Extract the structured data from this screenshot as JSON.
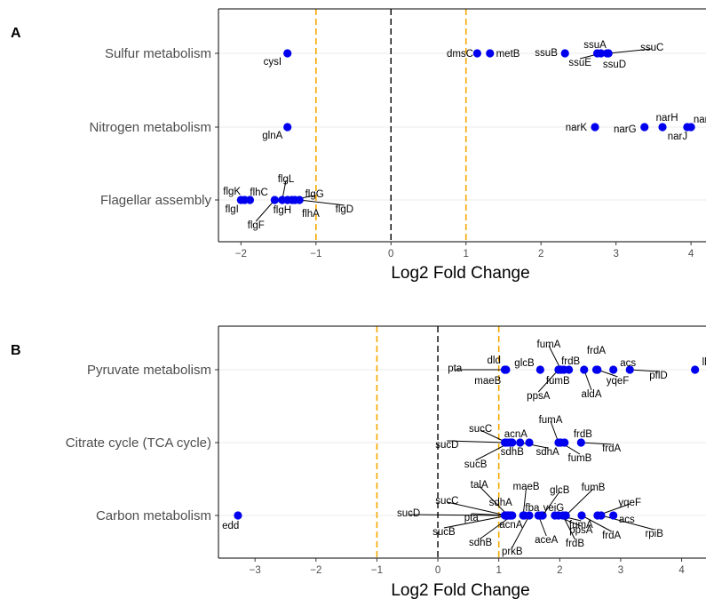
{
  "chart_data": [
    {
      "type": "scatter",
      "panel": "A",
      "xlabel": "Log2 Fold Change",
      "xlim": [
        -2.3,
        4.2
      ],
      "xticks": [
        -2,
        -1,
        0,
        1,
        2,
        3,
        4
      ],
      "xtick_labels": [
        "−2",
        "−1",
        "0",
        "1",
        "2",
        "3",
        "4"
      ],
      "reference_lines": {
        "zero": 0,
        "thresholds": [
          -1,
          1
        ]
      },
      "categories": [
        "Sulfur metabolism",
        "Nitrogen metabolism",
        "Flagellar assembly"
      ],
      "grid": "horizontal",
      "point_color": "#0000ee",
      "points": [
        {
          "category": "Sulfur metabolism",
          "gene": "cysI",
          "x": -1.38,
          "lx": -1.58,
          "ly": 9
        },
        {
          "category": "Sulfur metabolism",
          "gene": "dmsC",
          "x": 1.15,
          "lx": 0.92,
          "ly": 0
        },
        {
          "category": "Sulfur metabolism",
          "gene": "metB",
          "x": 1.32,
          "lx": 1.56,
          "ly": 0
        },
        {
          "category": "Sulfur metabolism",
          "gene": "ssuB",
          "x": 2.32,
          "lx": 2.07,
          "ly": -1
        },
        {
          "category": "Sulfur metabolism",
          "gene": "ssuA",
          "x": 2.75,
          "lx": 2.72,
          "ly": -10
        },
        {
          "category": "Sulfur metabolism",
          "gene": "ssuE",
          "x": 2.8,
          "lx": 2.52,
          "ly": 10
        },
        {
          "category": "Sulfur metabolism",
          "gene": "ssuD",
          "x": 2.88,
          "lx": 2.98,
          "ly": 12
        },
        {
          "category": "Sulfur metabolism",
          "gene": "ssuC",
          "x": 2.9,
          "lx": 3.48,
          "ly": -7
        },
        {
          "category": "Nitrogen metabolism",
          "gene": "glnA",
          "x": -1.38,
          "lx": -1.58,
          "ly": 9
        },
        {
          "category": "Nitrogen metabolism",
          "gene": "narK",
          "x": 2.72,
          "lx": 2.47,
          "ly": 0
        },
        {
          "category": "Nitrogen metabolism",
          "gene": "narG",
          "x": 3.38,
          "lx": 3.12,
          "ly": 2
        },
        {
          "category": "Nitrogen metabolism",
          "gene": "narH",
          "x": 3.62,
          "lx": 3.68,
          "ly": -11
        },
        {
          "category": "Nitrogen metabolism",
          "gene": "narJ",
          "x": 3.95,
          "lx": 3.82,
          "ly": 10
        },
        {
          "category": "Nitrogen metabolism",
          "gene": "narI",
          "x": 4.0,
          "lx": 4.15,
          "ly": -9
        },
        {
          "category": "Flagellar assembly",
          "gene": "flgK",
          "x": -2.0,
          "lx": -2.12,
          "ly": -10
        },
        {
          "category": "Flagellar assembly",
          "gene": "flgI",
          "x": -1.95,
          "lx": -2.12,
          "ly": 10
        },
        {
          "category": "Flagellar assembly",
          "gene": "flhC",
          "x": -1.88,
          "lx": -1.76,
          "ly": -9
        },
        {
          "category": "Flagellar assembly",
          "gene": "flgF",
          "x": -1.55,
          "lx": -1.8,
          "ly": 28
        },
        {
          "category": "Flagellar assembly",
          "gene": "flgL",
          "x": -1.45,
          "lx": -1.4,
          "ly": -24
        },
        {
          "category": "Flagellar assembly",
          "gene": "flgH",
          "x": -1.38,
          "lx": -1.45,
          "ly": 11
        },
        {
          "category": "Flagellar assembly",
          "gene": "flgG",
          "x": -1.32,
          "lx": -1.02,
          "ly": -7
        },
        {
          "category": "Flagellar assembly",
          "gene": "flhA",
          "x": -1.28,
          "lx": -1.07,
          "ly": 15
        },
        {
          "category": "Flagellar assembly",
          "gene": "flgD",
          "x": -1.22,
          "lx": -0.62,
          "ly": 10
        }
      ]
    },
    {
      "type": "scatter",
      "panel": "B",
      "xlabel": "Log2 Fold Change",
      "xlim": [
        -3.6,
        4.4
      ],
      "xticks": [
        -3,
        -2,
        -1,
        0,
        1,
        2,
        3,
        4
      ],
      "xtick_labels": [
        "−3",
        "−2",
        "−1",
        "0",
        "1",
        "2",
        "3",
        "4"
      ],
      "reference_lines": {
        "zero": 0,
        "thresholds": [
          -1,
          1
        ]
      },
      "categories": [
        "Pyruvate metabolism",
        "Citrate cycle (TCA cycle)",
        "Carbon metabolism"
      ],
      "grid": "horizontal",
      "point_color": "#0000ee",
      "points": [
        {
          "category": "Pyruvate metabolism",
          "gene": "pta",
          "x": 1.12,
          "lx": 0.28,
          "ly": -2
        },
        {
          "category": "Pyruvate metabolism",
          "gene": "dld",
          "x": 1.1,
          "lx": 0.92,
          "ly": -11
        },
        {
          "category": "Pyruvate metabolism",
          "gene": "maeB",
          "x": 1.1,
          "lx": 0.82,
          "ly": 12
        },
        {
          "category": "Pyruvate metabolism",
          "gene": "glcB",
          "x": 1.68,
          "lx": 1.42,
          "ly": -8
        },
        {
          "category": "Pyruvate metabolism",
          "gene": "ppsA",
          "x": 1.98,
          "lx": 1.65,
          "ly": 29
        },
        {
          "category": "Pyruvate metabolism",
          "gene": "fumA",
          "x": 2.02,
          "lx": 1.82,
          "ly": -29
        },
        {
          "category": "Pyruvate metabolism",
          "gene": "fumB",
          "x": 2.07,
          "lx": 1.97,
          "ly": 12
        },
        {
          "category": "Pyruvate metabolism",
          "gene": "frdB",
          "x": 2.15,
          "lx": 2.18,
          "ly": -10
        },
        {
          "category": "Pyruvate metabolism",
          "gene": "aldA",
          "x": 2.4,
          "lx": 2.52,
          "ly": 27
        },
        {
          "category": "Pyruvate metabolism",
          "gene": "frdA",
          "x": 2.6,
          "lx": 2.6,
          "ly": -22
        },
        {
          "category": "Pyruvate metabolism",
          "gene": "acs",
          "x": 2.88,
          "lx": 3.12,
          "ly": -8
        },
        {
          "category": "Pyruvate metabolism",
          "gene": "yqeF",
          "x": 2.62,
          "lx": 2.95,
          "ly": 12
        },
        {
          "category": "Pyruvate metabolism",
          "gene": "pflD",
          "x": 3.15,
          "lx": 3.62,
          "ly": 6
        },
        {
          "category": "Pyruvate metabolism",
          "gene": "lldD",
          "x": 4.22,
          "lx": 4.48,
          "ly": -9
        },
        {
          "category": "Citrate cycle (TCA cycle)",
          "gene": "sucD",
          "x": 1.1,
          "lx": 0.15,
          "ly": 2
        },
        {
          "category": "Citrate cycle (TCA cycle)",
          "gene": "sucC",
          "x": 1.13,
          "lx": 0.7,
          "ly": -16
        },
        {
          "category": "Citrate cycle (TCA cycle)",
          "gene": "acnA",
          "x": 1.2,
          "lx": 1.28,
          "ly": -10
        },
        {
          "category": "Citrate cycle (TCA cycle)",
          "gene": "sdhB",
          "x": 1.22,
          "lx": 1.22,
          "ly": 10
        },
        {
          "category": "Citrate cycle (TCA cycle)",
          "gene": "sucB",
          "x": 1.18,
          "lx": 0.62,
          "ly": 24
        },
        {
          "category": "Citrate cycle (TCA cycle)",
          "gene": "sdhA",
          "x": 1.35,
          "lx": 1.8,
          "ly": 10
        },
        {
          "category": "Citrate cycle (TCA cycle)",
          "gene": "fumA",
          "x": 1.98,
          "lx": 1.85,
          "ly": -26
        },
        {
          "category": "Citrate cycle (TCA cycle)",
          "gene": "fumB",
          "x": 2.02,
          "lx": 2.33,
          "ly": 17
        },
        {
          "category": "Citrate cycle (TCA cycle)",
          "gene": "frdB",
          "x": 2.08,
          "lx": 2.38,
          "ly": -10
        },
        {
          "category": "Citrate cycle (TCA cycle)",
          "gene": "frdA",
          "x": 2.35,
          "lx": 2.85,
          "ly": 6
        },
        {
          "category": "Citrate cycle (TCA cycle)",
          "gene": "sucB_mid",
          "x": 1.5,
          "lx": 1.5,
          "ly": 0,
          "hidden_label": true
        },
        {
          "category": "Carbon metabolism",
          "gene": "edd",
          "x": -3.28,
          "lx": -3.4,
          "ly": 11
        },
        {
          "category": "Carbon metabolism",
          "gene": "sucD",
          "x": 1.1,
          "lx": -0.48,
          "ly": -3
        },
        {
          "category": "Carbon metabolism",
          "gene": "sucC",
          "x": 1.12,
          "lx": 0.15,
          "ly": -17
        },
        {
          "category": "Carbon metabolism",
          "gene": "talA",
          "x": 1.15,
          "lx": 0.68,
          "ly": -35
        },
        {
          "category": "Carbon metabolism",
          "gene": "sdhA",
          "x": 1.18,
          "lx": 1.03,
          "ly": -15
        },
        {
          "category": "Carbon metabolism",
          "gene": "pta",
          "x": 1.12,
          "lx": 0.55,
          "ly": 2
        },
        {
          "category": "Carbon metabolism",
          "gene": "acnA",
          "x": 1.2,
          "lx": 1.2,
          "ly": 10
        },
        {
          "category": "Carbon metabolism",
          "gene": "sucB",
          "x": 1.15,
          "lx": 0.1,
          "ly": 18
        },
        {
          "category": "Carbon metabolism",
          "gene": "sdhB",
          "x": 1.22,
          "lx": 0.7,
          "ly": 30
        },
        {
          "category": "Carbon metabolism",
          "gene": "maeB",
          "x": 1.4,
          "lx": 1.45,
          "ly": -33
        },
        {
          "category": "Carbon metabolism",
          "gene": "fba",
          "x": 1.42,
          "lx": 1.55,
          "ly": -9
        },
        {
          "category": "Carbon metabolism",
          "gene": "prkB",
          "x": 1.5,
          "lx": 1.22,
          "ly": 40
        },
        {
          "category": "Carbon metabolism",
          "gene": "yeiG",
          "x": 1.7,
          "lx": 1.9,
          "ly": -9
        },
        {
          "category": "Carbon metabolism",
          "gene": "glcB",
          "x": 1.72,
          "lx": 2.0,
          "ly": -29
        },
        {
          "category": "Carbon metabolism",
          "gene": "aceA",
          "x": 1.65,
          "lx": 1.78,
          "ly": 27
        },
        {
          "category": "Carbon metabolism",
          "gene": "ppsA",
          "x": 1.92,
          "lx": 2.35,
          "ly": 16
        },
        {
          "category": "Carbon metabolism",
          "gene": "fumA",
          "x": 1.98,
          "lx": 2.35,
          "ly": 10
        },
        {
          "category": "Carbon metabolism",
          "gene": "frdB",
          "x": 2.05,
          "lx": 2.25,
          "ly": 31
        },
        {
          "category": "Carbon metabolism",
          "gene": "fumB",
          "x": 2.1,
          "lx": 2.55,
          "ly": -32
        },
        {
          "category": "Carbon metabolism",
          "gene": "frdA",
          "x": 2.36,
          "lx": 2.85,
          "ly": 22
        },
        {
          "category": "Carbon metabolism",
          "gene": "yqeF",
          "x": 2.62,
          "lx": 3.15,
          "ly": -15
        },
        {
          "category": "Carbon metabolism",
          "gene": "acs",
          "x": 2.88,
          "lx": 3.1,
          "ly": 4
        },
        {
          "category": "Carbon metabolism",
          "gene": "rpiB",
          "x": 2.68,
          "lx": 3.55,
          "ly": 20
        }
      ]
    }
  ]
}
